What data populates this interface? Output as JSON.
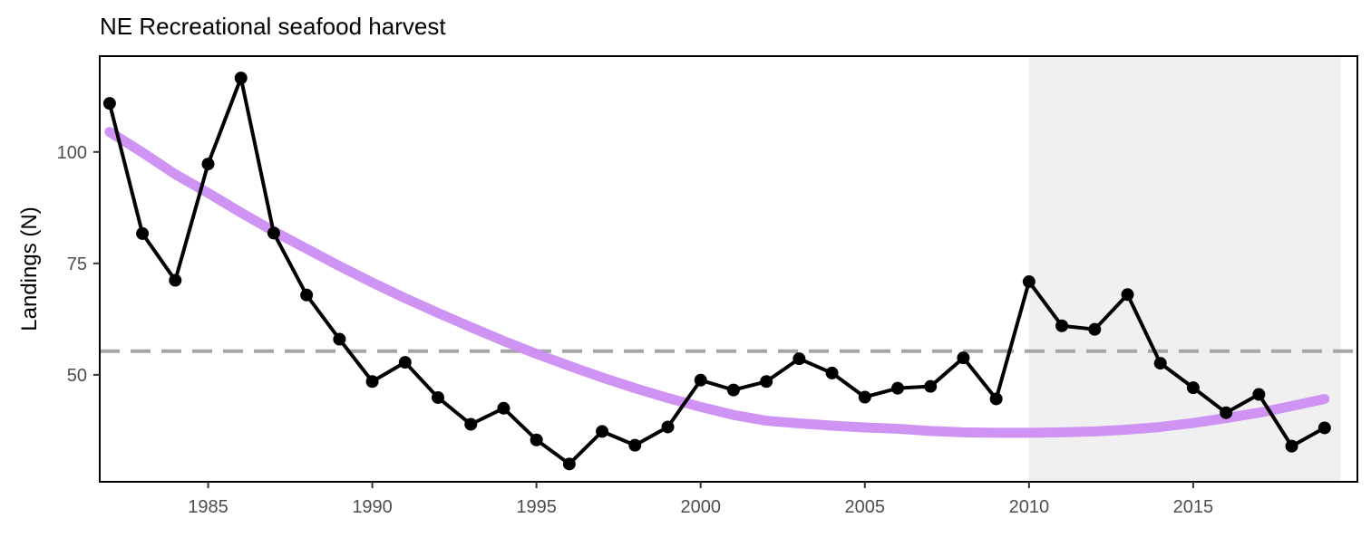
{
  "chart_data": {
    "type": "line",
    "title": "NE Recreational seafood harvest",
    "xlabel": "",
    "ylabel": "Landings (N)",
    "xlim": [
      1981.7,
      2020.0
    ],
    "ylim": [
      26,
      121.5
    ],
    "x_ticks": [
      1985,
      1990,
      1995,
      2000,
      2005,
      2010,
      2015
    ],
    "y_ticks": [
      50,
      75,
      100
    ],
    "grid": false,
    "shaded_region": {
      "x_start": 2010,
      "x_end": 2019.5,
      "color": "#f0f0f0"
    },
    "reference_line": {
      "y": 55.3,
      "style": "dashed",
      "color": "#a6a6a6"
    },
    "series": [
      {
        "kind": "observed",
        "color": "#000000",
        "x": [
          1982,
          1983,
          1984,
          1985,
          1986,
          1987,
          1988,
          1989,
          1990,
          1991,
          1992,
          1993,
          1994,
          1995,
          1996,
          1997,
          1998,
          1999,
          2000,
          2001,
          2002,
          2003,
          2004,
          2005,
          2006,
          2007,
          2008,
          2009,
          2010,
          2011,
          2012,
          2013,
          2014,
          2015,
          2016,
          2017,
          2018,
          2019
        ],
        "values": [
          110.9,
          81.7,
          71.2,
          97.3,
          116.6,
          81.8,
          67.9,
          58.0,
          48.5,
          52.8,
          44.9,
          38.9,
          42.5,
          35.4,
          30.0,
          37.3,
          34.2,
          38.3,
          48.8,
          46.6,
          48.5,
          53.6,
          50.4,
          45.0,
          47.0,
          47.4,
          53.8,
          44.6,
          70.9,
          61.0,
          60.2,
          68.0,
          52.6,
          47.1,
          41.5,
          45.6,
          34.0,
          38.1
        ]
      },
      {
        "kind": "trend",
        "color": "#cc8ef2",
        "x": [
          1982,
          1983,
          1984,
          1985,
          1986,
          1987,
          1988,
          1989,
          1990,
          1991,
          1992,
          1993,
          1994,
          1995,
          1996,
          1997,
          1998,
          1999,
          2000,
          2001,
          2002,
          2003,
          2004,
          2005,
          2006,
          2007,
          2008,
          2009,
          2010,
          2011,
          2012,
          2013,
          2014,
          2015,
          2016,
          2017,
          2018,
          2019
        ],
        "values": [
          104.5,
          99.9,
          95.0,
          90.8,
          86.4,
          82.2,
          78.3,
          74.4,
          70.7,
          67.2,
          63.9,
          60.7,
          57.6,
          54.7,
          52.0,
          49.4,
          47.0,
          44.8,
          42.8,
          41.0,
          39.7,
          39.1,
          38.6,
          38.2,
          37.9,
          37.4,
          37.1,
          37.0,
          37.0,
          37.1,
          37.3,
          37.7,
          38.3,
          39.2,
          40.3,
          41.5,
          43.0,
          44.6
        ]
      }
    ]
  }
}
